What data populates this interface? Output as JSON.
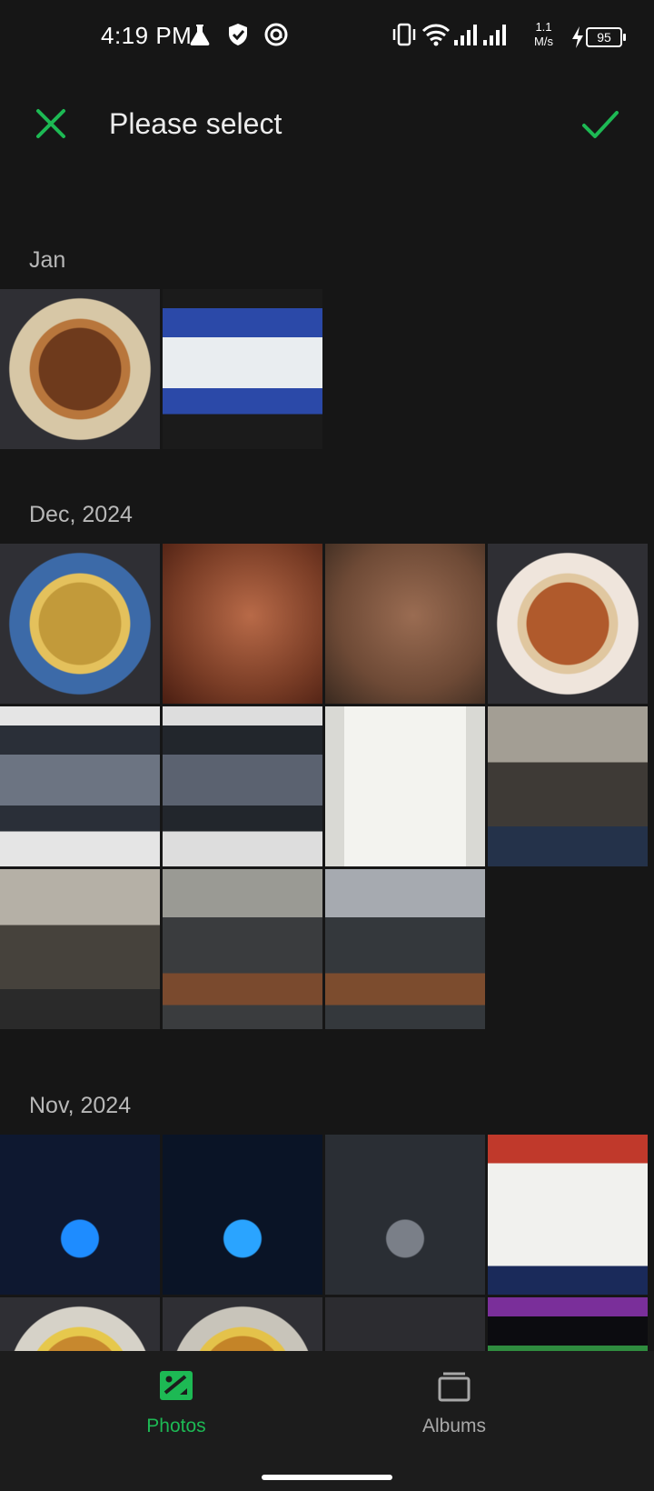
{
  "status_bar": {
    "time": "4:19 PM",
    "icons": [
      "flask-icon",
      "shield-check-icon",
      "at-sync-icon",
      "vibrate-icon",
      "wifi-icon",
      "signal-icon",
      "signal-icon",
      "charging-bolt-icon"
    ],
    "speed_value": "1.1",
    "speed_unit": "M/s",
    "battery": "95"
  },
  "app_bar": {
    "title": "Please select",
    "close_icon": "close-icon",
    "confirm_icon": "check-icon",
    "accent_color": "#1db954"
  },
  "sections": [
    {
      "label": "Jan",
      "photos": [
        {
          "desc": "fried noodles with eggs on plate",
          "colors": [
            "#6e3a1c",
            "#b8763c",
            "#d7c7a6"
          ],
          "kind": "food"
        },
        {
          "desc": "monitor showing handwriting",
          "colors": [
            "#2b49a8",
            "#e9edf0",
            "#1b1b1b"
          ],
          "kind": "screen"
        }
      ]
    },
    {
      "label": "Dec, 2024",
      "photos": [
        {
          "desc": "yellow noodles on plate",
          "colors": [
            "#c29a3a",
            "#e4c15c",
            "#3c6aa8"
          ],
          "kind": "food"
        },
        {
          "desc": "close up skin",
          "colors": [
            "#7a3d26",
            "#b86a48",
            "#4a1e12"
          ],
          "kind": "skin"
        },
        {
          "desc": "palm of hand",
          "colors": [
            "#6e4a36",
            "#9a6c52",
            "#3a2a20"
          ],
          "kind": "skin"
        },
        {
          "desc": "noodles on white plate",
          "colors": [
            "#b05a2c",
            "#e0c7a0",
            "#efe5dc"
          ],
          "kind": "food"
        },
        {
          "desc": "game screen on laptop",
          "colors": [
            "#2a2f38",
            "#6c7482",
            "#e5e5e5"
          ],
          "kind": "screen"
        },
        {
          "desc": "game screen on laptop",
          "colors": [
            "#22262c",
            "#5b6270",
            "#dddddd"
          ],
          "kind": "screen"
        },
        {
          "desc": "handwritten note",
          "colors": [
            "#d9d9d4",
            "#f3f3ef",
            "#4a4a6a"
          ],
          "kind": "paper"
        },
        {
          "desc": "people sitting in lab",
          "colors": [
            "#3e3a36",
            "#a39e94",
            "#24324a"
          ],
          "kind": "people"
        },
        {
          "desc": "people sitting in lab",
          "colors": [
            "#46423c",
            "#b5b0a6",
            "#2a2a2a"
          ],
          "kind": "people"
        },
        {
          "desc": "room with chairs",
          "colors": [
            "#3a3c3e",
            "#9a9a94",
            "#7a4a2e"
          ],
          "kind": "room"
        },
        {
          "desc": "room with chairs",
          "colors": [
            "#34383c",
            "#a6aab0",
            "#7c4c2e"
          ],
          "kind": "room"
        }
      ]
    },
    {
      "label": "Nov, 2024",
      "photos": [
        {
          "desc": "pc case with blue fans",
          "colors": [
            "#0e1830",
            "#1e8cff",
            "#c0392b"
          ],
          "kind": "pc"
        },
        {
          "desc": "pc case with blue fans",
          "colors": [
            "#0a1426",
            "#2aa4ff",
            "#3a3a3a"
          ],
          "kind": "pc"
        },
        {
          "desc": "pc case interior",
          "colors": [
            "#2a2e34",
            "#7a7f88",
            "#b0b5bc"
          ],
          "kind": "pc"
        },
        {
          "desc": "university id card",
          "colors": [
            "#c0392b",
            "#f1f1ee",
            "#1a2a5a"
          ],
          "kind": "card"
        },
        {
          "desc": "curry on plate",
          "colors": [
            "#c7882e",
            "#e6c84c",
            "#d6d2c8"
          ],
          "kind": "food"
        },
        {
          "desc": "curry on plate",
          "colors": [
            "#c48428",
            "#e4c24a",
            "#c8c4ba"
          ],
          "kind": "food"
        },
        {
          "desc": "backlit keyboard",
          "colors": [
            "#2c2c30",
            "#e8e8ee",
            "#c9a4b8"
          ],
          "kind": "keyboard"
        },
        {
          "desc": "monitor in dark room",
          "colors": [
            "#0c0c10",
            "#2f8c3f",
            "#7a2f9a"
          ],
          "kind": "screen"
        }
      ]
    }
  ],
  "bottom_nav": {
    "items": [
      {
        "label": "Photos",
        "icon": "photo-icon",
        "active": true
      },
      {
        "label": "Albums",
        "icon": "albums-icon",
        "active": false
      }
    ],
    "active_color": "#1db954",
    "inactive_color": "#a8a8a8"
  }
}
